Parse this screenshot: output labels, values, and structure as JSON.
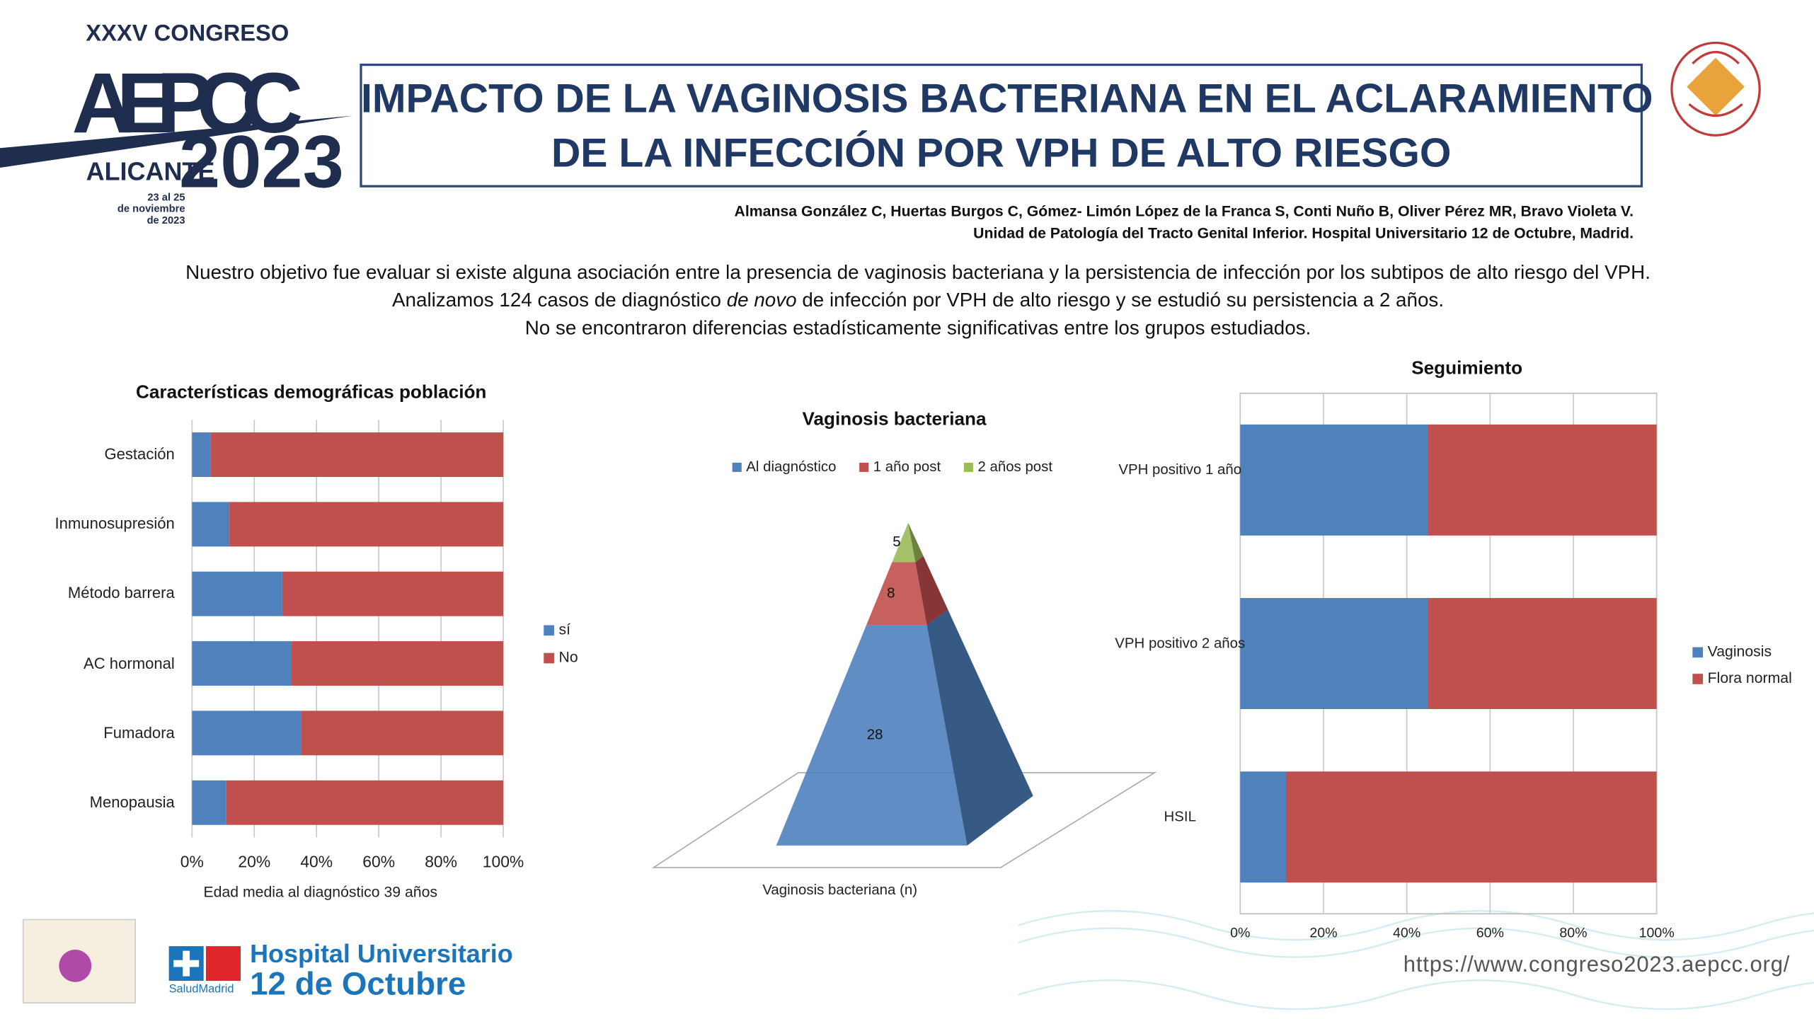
{
  "header": {
    "congress": "XXXV CONGRESO",
    "society": "AEPCC",
    "city": "ALICANTE",
    "year": "2023",
    "dates": [
      "23 al 25",
      "de noviembre",
      "de 2023"
    ],
    "title": [
      "IMPACTO DE LA VAGINOSIS BACTERIANA EN EL ACLARAMIENTO",
      "DE LA INFECCIÓN POR VPH DE ALTO RIESGO"
    ],
    "authors": "Almansa González C, Huertas Burgos C, Gómez- Limón López de la Franca S, Conti Nuño B, Oliver Pérez MR, Bravo Violeta V.",
    "affiliation": "Unidad de Patología del Tracto Genital Inferior.  Hospital Universitario 12 de Octubre, Madrid."
  },
  "intro": [
    "Nuestro objetivo fue evaluar si existe alguna asociación entre la presencia de vaginosis bacteriana y la persistencia de infección por los subtipos de alto riesgo del VPH.",
    [
      "Analizamos 124 casos de diagnóstico ",
      "de novo",
      " de infección por VPH de alto riesgo y  se estudió su persistencia a 2 años."
    ],
    "No se encontraron diferencias estadísticamente significativas entre los grupos estudiados."
  ],
  "chart_data": [
    {
      "type": "hbar_stacked",
      "title": "Características demográficas población",
      "xlabel": "Edad media al diagnóstico 39 años",
      "categories": [
        "Gestación",
        "Inmunosupresión",
        "Método barrera",
        "AC hormonal",
        "Fumadora",
        "Menopausia"
      ],
      "series": [
        {
          "name": "sí",
          "color": "#4f81bd",
          "values": [
            6,
            12,
            29,
            32,
            35,
            11
          ]
        },
        {
          "name": "No",
          "color": "#c0504d",
          "values": [
            94,
            88,
            71,
            68,
            65,
            89
          ]
        }
      ],
      "xlim": [
        0,
        100
      ],
      "xticks": [
        {
          "value": 0,
          "label": "0%"
        },
        {
          "value": 20,
          "label": "20%"
        },
        {
          "value": 40,
          "label": "40%"
        },
        {
          "value": 60,
          "label": "60%"
        },
        {
          "value": 80,
          "label": "80%"
        },
        {
          "value": 100,
          "label": "100%"
        }
      ],
      "grid": true,
      "legend": "right"
    },
    {
      "type": "pyramid",
      "title": "Vaginosis bacteriana",
      "categories": [
        "Vaginosis bacteriana (n)"
      ],
      "series": [
        {
          "name": "Al diagnóstico",
          "color": "#4f81bd",
          "values": [
            28
          ]
        },
        {
          "name": "1 año post",
          "color": "#c0504d",
          "values": [
            8
          ]
        },
        {
          "name": "2 años post",
          "color": "#9bbb59",
          "values": [
            5
          ]
        }
      ],
      "legend": "top"
    },
    {
      "type": "hbar_stacked",
      "title": "Seguimiento",
      "categories": [
        "VPH positivo 1 año",
        "VPH positivo 2 años",
        "HSIL"
      ],
      "series": [
        {
          "name": "Vaginosis",
          "color": "#4f81bd",
          "values": [
            45,
            45,
            11
          ]
        },
        {
          "name": "Flora normal",
          "color": "#c0504d",
          "values": [
            55,
            55,
            89
          ]
        }
      ],
      "xlim": [
        0,
        100
      ],
      "xticks": [
        {
          "value": 0,
          "label": "0%"
        },
        {
          "value": 20,
          "label": "20%"
        },
        {
          "value": 40,
          "label": "40%"
        },
        {
          "value": 60,
          "label": "60%"
        },
        {
          "value": 80,
          "label": "80%"
        },
        {
          "value": 100,
          "label": "100%"
        }
      ],
      "grid": true,
      "legend": "right"
    }
  ],
  "footer": {
    "hospital": [
      "Hospital Universitario",
      "12 de Octubre"
    ],
    "health_service": "SaludMadrid",
    "url": "https://www.congreso2023.aepcc.org/"
  }
}
